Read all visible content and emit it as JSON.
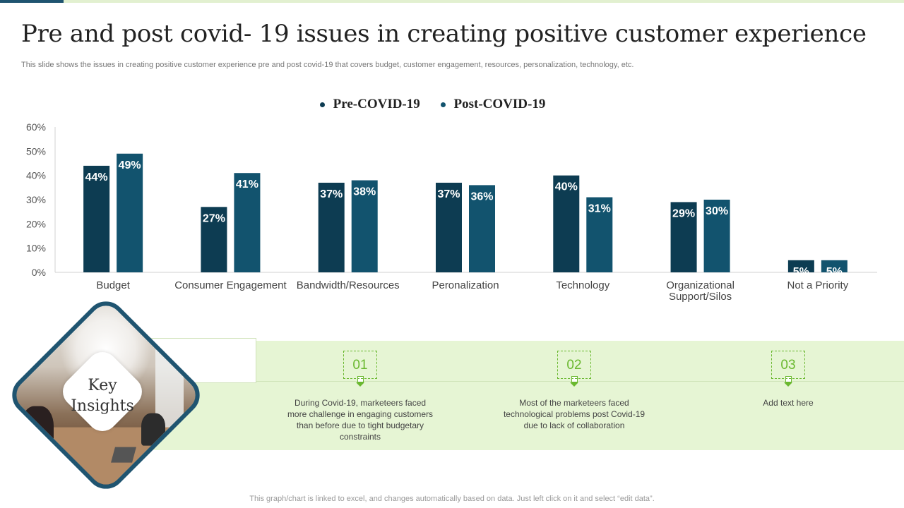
{
  "title": "Pre and post covid- 19 issues in creating positive customer experience",
  "subtitle": "This slide shows the issues in creating positive customer experience pre and post covid-19 that covers budget, customer engagement, resources, personalization, technology, etc.",
  "colors": {
    "pre": "#0d3c52",
    "post": "#12536e",
    "accent_green": "#6ab82f",
    "band": "#e6f5d4"
  },
  "chart_data": {
    "type": "bar",
    "title": "",
    "categories": [
      "Budget",
      "Consumer Engagement",
      "Bandwidth/Resources",
      "Peronalization",
      "Technology",
      "Organizational Support/Silos",
      "Not a Priority"
    ],
    "category_lines": [
      [
        "Budget"
      ],
      [
        "Consumer Engagement"
      ],
      [
        "Bandwidth/Resources"
      ],
      [
        "Peronalization"
      ],
      [
        "Technology"
      ],
      [
        "Organizational",
        "Support/Silos"
      ],
      [
        "Not a Priority"
      ]
    ],
    "series": [
      {
        "name": "Pre-COVID-19",
        "values": [
          44,
          27,
          37,
          37,
          40,
          29,
          5
        ],
        "labels": [
          "44%",
          "27%",
          "37%",
          "37%",
          "40%",
          "29%",
          "5%"
        ]
      },
      {
        "name": "Post-COVID-19",
        "values": [
          49,
          41,
          38,
          36,
          31,
          30,
          5
        ],
        "labels": [
          "49%",
          "41%",
          "38%",
          "36%",
          "31%",
          "30%",
          "5%"
        ]
      }
    ],
    "ylim": [
      0,
      60
    ],
    "yticks": [
      0,
      10,
      20,
      30,
      40,
      50,
      60
    ],
    "ytick_labels": [
      "0%",
      "10%",
      "20%",
      "30%",
      "40%",
      "50%",
      "60%"
    ],
    "xlabel": "",
    "ylabel": "",
    "legend_position": "top-center"
  },
  "insights": {
    "title_line1": "Key",
    "title_line2": "Insights",
    "steps": [
      {
        "number": "01",
        "text": "During Covid-19,  marketeers faced more challenge in engaging customers than before due to tight budgetary constraints"
      },
      {
        "number": "02",
        "text": "Most of the marketeers faced technological problems post Covid-19 due to lack of collaboration"
      },
      {
        "number": "03",
        "text": "Add text here"
      }
    ]
  },
  "footer": "This graph/chart is linked to excel,  and changes automatically based on data. Just left click on it and select “edit data”."
}
